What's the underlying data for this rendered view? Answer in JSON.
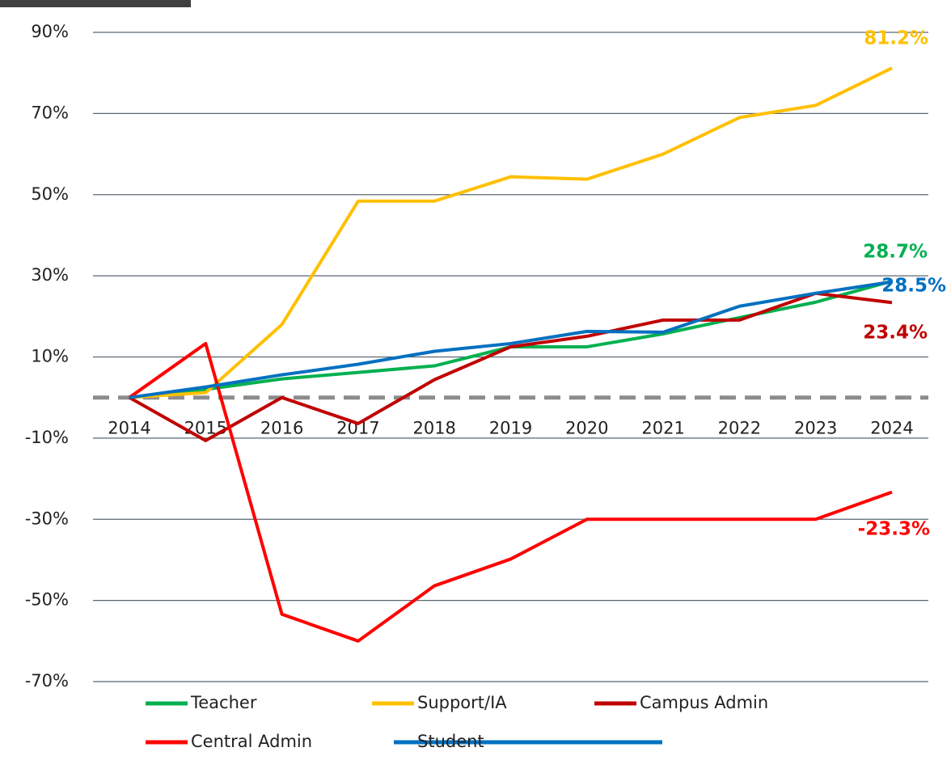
{
  "chart_data": {
    "type": "line",
    "categories": [
      "2014",
      "2015",
      "2016",
      "2017",
      "2018",
      "2019",
      "2020",
      "2021",
      "2022",
      "2023",
      "2024"
    ],
    "series": [
      {
        "name": "Teacher",
        "color": "#00b050",
        "values": [
          0,
          2,
          4.6,
          6.2,
          7.8,
          12.5,
          12.5,
          15.7,
          19.7,
          23.5,
          28.7
        ],
        "value_labels": [
          null,
          null,
          null,
          null,
          null,
          null,
          null,
          null,
          null,
          null,
          "28.7%"
        ]
      },
      {
        "name": "Support/IA",
        "color": "#ffc000",
        "values": [
          0,
          1.2,
          18,
          48.4,
          48.4,
          54.4,
          53.8,
          60,
          69,
          72,
          81.2
        ],
        "value_labels": [
          null,
          null,
          null,
          null,
          null,
          null,
          null,
          null,
          null,
          null,
          "81.2%"
        ]
      },
      {
        "name": "Campus Admin",
        "color": "#c00000",
        "values": [
          0,
          -10.6,
          0,
          -6.4,
          4.4,
          12.5,
          15.1,
          19.1,
          19.1,
          25.7,
          23.4
        ],
        "value_labels": [
          null,
          null,
          null,
          null,
          null,
          null,
          null,
          null,
          null,
          null,
          "23.4%"
        ]
      },
      {
        "name": "Central Admin",
        "color": "#ff0000",
        "values": [
          0,
          13.3,
          -53.4,
          -60,
          -46.4,
          -39.8,
          -30,
          -30,
          -30,
          -30,
          -23.3
        ],
        "value_labels": [
          null,
          null,
          null,
          null,
          null,
          null,
          null,
          null,
          null,
          null,
          "-23.3%"
        ]
      },
      {
        "name": "Student",
        "color": "#0070c0",
        "values": [
          0,
          2.6,
          5.6,
          8.2,
          11.4,
          13.3,
          16.3,
          16.1,
          22.5,
          25.7,
          28.5
        ],
        "value_labels": [
          null,
          null,
          null,
          null,
          null,
          null,
          null,
          null,
          null,
          null,
          "28.5%"
        ]
      }
    ],
    "ylim": [
      -70,
      90
    ],
    "yticks": [
      {
        "value": -70,
        "label": "-70%"
      },
      {
        "value": -50,
        "label": "-50%"
      },
      {
        "value": -30,
        "label": "-30%"
      },
      {
        "value": -10,
        "label": "-10%"
      },
      {
        "value": 10,
        "label": "10%"
      },
      {
        "value": 30,
        "label": "30%"
      },
      {
        "value": 50,
        "label": "50%"
      },
      {
        "value": 70,
        "label": "70%"
      },
      {
        "value": 90,
        "label": "90%"
      }
    ],
    "grid": true,
    "legend": "bottom"
  }
}
